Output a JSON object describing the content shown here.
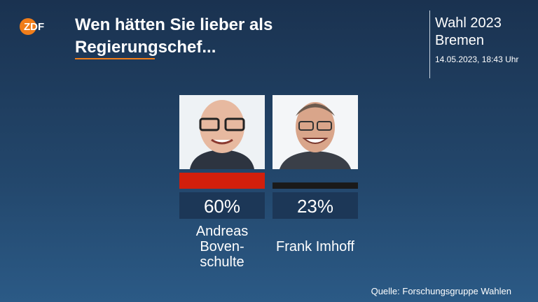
{
  "logo": "ZDF",
  "header": {
    "election": "Wahl 2023",
    "region": "Bremen",
    "timestamp": "14.05.2023, 18:43 Uhr"
  },
  "source": "Quelle: Forschungsgruppe Wahlen",
  "chart_data": {
    "type": "bar",
    "title": "Wen hätten Sie lieber als Regierungschef...",
    "categories": [
      "Andreas Boven-schulte",
      "Frank Imhoff"
    ],
    "values": [
      60,
      23
    ],
    "value_labels": [
      "60%",
      "23%"
    ],
    "colors": [
      "#d21f0c",
      "#1a1a1a"
    ]
  }
}
